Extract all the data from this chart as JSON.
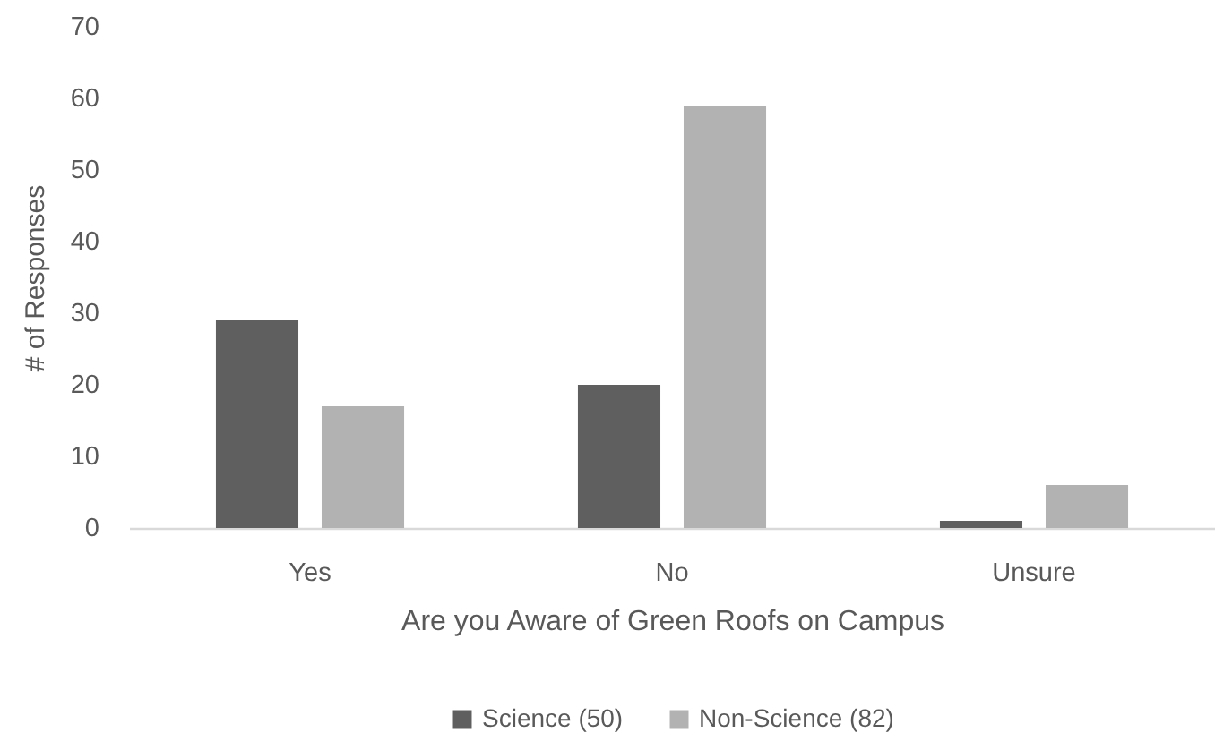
{
  "chart_data": {
    "type": "bar",
    "xlabel": "Are you Aware of Green Roofs on Campus",
    "ylabel": "# of Responses",
    "categories": [
      "Yes",
      "No",
      "Unsure"
    ],
    "series": [
      {
        "name": "Science (50)",
        "color": "#5f5f5f",
        "values": [
          29,
          20,
          1
        ]
      },
      {
        "name": "Non-Science (82)",
        "color": "#b2b2b2",
        "values": [
          17,
          59,
          6
        ]
      }
    ],
    "ylim": [
      0,
      70
    ],
    "yticks": [
      0,
      10,
      20,
      30,
      40,
      50,
      60,
      70
    ],
    "grid": false,
    "legend": "bottom"
  }
}
